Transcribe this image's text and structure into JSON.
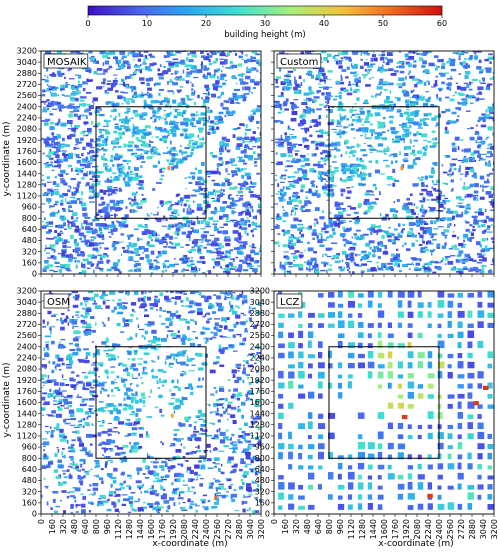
{
  "chart_data": {
    "type": "heatmap",
    "colorbar": {
      "label": "building height (m)",
      "ticks": [
        0,
        10,
        20,
        30,
        40,
        50,
        60
      ],
      "range": [
        0,
        60
      ],
      "colormap": [
        "#3b0fc4",
        "#4c63f0",
        "#2aa9f2",
        "#3fe0d0",
        "#a7f07a",
        "#f2c33b",
        "#f06a1f",
        "#d01010"
      ]
    },
    "xlabel": "x-coordinate (m)",
    "ylabel": "y-coordinate (m)",
    "xlim": [
      0,
      3200
    ],
    "ylim": [
      0,
      3200
    ],
    "x_ticks": [
      0,
      160,
      320,
      480,
      640,
      800,
      960,
      1120,
      1280,
      1440,
      1600,
      1760,
      1920,
      2080,
      2240,
      2400,
      2560,
      2720,
      2880,
      3040,
      3200
    ],
    "y_ticks": [
      0,
      160,
      320,
      480,
      640,
      800,
      960,
      1120,
      1280,
      1440,
      1600,
      1760,
      1920,
      2080,
      2240,
      2400,
      2560,
      2720,
      2880,
      3040,
      3200
    ],
    "inner_domain": {
      "x": [
        800,
        2400
      ],
      "y": [
        800,
        2400
      ]
    },
    "panels": [
      {
        "label": "MOSAIK",
        "dataset": "mosaik"
      },
      {
        "label": "Custom",
        "dataset": "custom"
      },
      {
        "label": "OSM",
        "dataset": "osm"
      },
      {
        "label": "LCZ",
        "dataset": "lcz"
      }
    ]
  }
}
